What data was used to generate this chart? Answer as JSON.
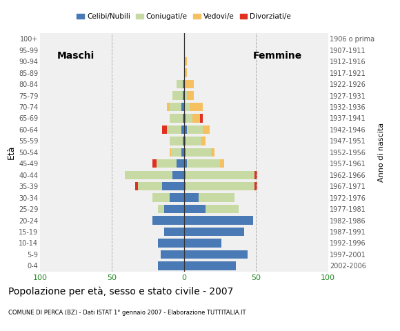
{
  "age_groups": [
    "0-4",
    "5-9",
    "10-14",
    "15-19",
    "20-24",
    "25-29",
    "30-34",
    "35-39",
    "40-44",
    "45-49",
    "50-54",
    "55-59",
    "60-64",
    "65-69",
    "70-74",
    "75-79",
    "80-84",
    "85-89",
    "90-94",
    "95-99",
    "100+"
  ],
  "birth_years": [
    "2002-2006",
    "1997-2001",
    "1992-1996",
    "1987-1991",
    "1982-1986",
    "1977-1981",
    "1972-1976",
    "1967-1971",
    "1962-1966",
    "1957-1961",
    "1952-1956",
    "1947-1951",
    "1942-1946",
    "1937-1941",
    "1932-1936",
    "1927-1931",
    "1922-1926",
    "1917-1921",
    "1912-1916",
    "1907-1911",
    "1906 o prima"
  ],
  "males": {
    "celibi": [
      18,
      16,
      18,
      14,
      22,
      14,
      10,
      15,
      8,
      5,
      2,
      1,
      2,
      1,
      2,
      1,
      1,
      0,
      0,
      0,
      0
    ],
    "coniugati": [
      0,
      0,
      0,
      0,
      0,
      4,
      12,
      17,
      33,
      14,
      7,
      9,
      10,
      9,
      8,
      7,
      4,
      0,
      0,
      0,
      0
    ],
    "vedovi": [
      0,
      0,
      0,
      0,
      0,
      0,
      0,
      0,
      0,
      0,
      1,
      0,
      0,
      0,
      2,
      0,
      0,
      0,
      0,
      0,
      0
    ],
    "divorziati": [
      0,
      0,
      0,
      0,
      0,
      0,
      0,
      2,
      0,
      3,
      0,
      0,
      3,
      0,
      0,
      0,
      0,
      0,
      0,
      0,
      0
    ]
  },
  "females": {
    "nubili": [
      36,
      44,
      26,
      42,
      48,
      15,
      10,
      1,
      1,
      2,
      1,
      1,
      2,
      1,
      0,
      0,
      0,
      0,
      0,
      0,
      0
    ],
    "coniugate": [
      0,
      0,
      0,
      0,
      0,
      23,
      25,
      48,
      48,
      23,
      18,
      11,
      11,
      5,
      4,
      2,
      0,
      0,
      0,
      0,
      0
    ],
    "vedove": [
      0,
      0,
      0,
      0,
      0,
      0,
      0,
      0,
      0,
      3,
      2,
      3,
      5,
      5,
      9,
      5,
      7,
      2,
      2,
      0,
      0
    ],
    "divorziate": [
      0,
      0,
      0,
      0,
      0,
      0,
      0,
      2,
      2,
      0,
      0,
      0,
      0,
      2,
      0,
      0,
      0,
      0,
      0,
      0,
      0
    ]
  },
  "colors": {
    "celibi": "#4a7ab5",
    "coniugati": "#c8daa4",
    "vedovi": "#f5c060",
    "divorziati": "#e03020"
  },
  "title": "Popolazione per età, sesso e stato civile - 2007",
  "subtitle": "COMUNE DI PERCA (BZ) - Dati ISTAT 1° gennaio 2007 - Elaborazione TUTTITALIA.IT",
  "xlabel_left": "Maschi",
  "xlabel_right": "Femmine",
  "ylabel": "Età",
  "ylabel_right": "Anno di nascita",
  "legend_labels": [
    "Celibi/Nubili",
    "Coniugati/e",
    "Vedovi/e",
    "Divorziati/e"
  ],
  "xlim": 100,
  "background_color": "#ffffff",
  "plot_bg_color": "#f0f0f0"
}
